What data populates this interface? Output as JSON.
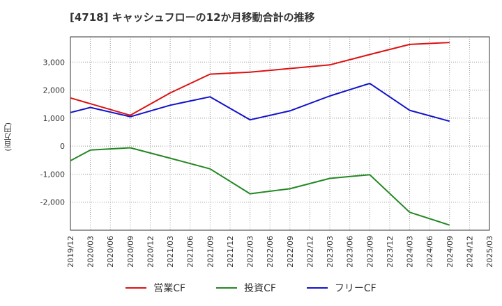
{
  "title": "[4718]  キャッシュフローの12か月移動合計の推移",
  "y_unit_label": "(百万円)",
  "chart_data": {
    "type": "line",
    "x_ticks": [
      "2019/12",
      "2020/03",
      "2020/06",
      "2020/09",
      "2020/12",
      "2021/03",
      "2021/06",
      "2021/09",
      "2021/12",
      "2022/03",
      "2022/06",
      "2022/09",
      "2022/12",
      "2023/03",
      "2023/06",
      "2023/09",
      "2023/12",
      "2024/03",
      "2024/06",
      "2024/09",
      "2024/12",
      "2025/03"
    ],
    "y_ticks": [
      -2000,
      -1000,
      0,
      1000,
      2000,
      3000
    ],
    "y_tick_labels": [
      "-2,000",
      "-1,000",
      "0",
      "1,000",
      "2,000",
      "3,000"
    ],
    "ylim": [
      -3000,
      3900
    ],
    "grid": true,
    "legend_position": "bottom",
    "series": [
      {
        "name": "営業CF",
        "color": "#dd1111",
        "x": [
          "2019/12",
          "2020/09",
          "2021/03",
          "2021/09",
          "2022/03",
          "2022/09",
          "2023/03",
          "2023/09",
          "2024/03",
          "2024/09"
        ],
        "values": [
          1720,
          1100,
          1900,
          2570,
          2640,
          2770,
          2900,
          3270,
          3630,
          3700
        ]
      },
      {
        "name": "投資CF",
        "color": "#228822",
        "x": [
          "2019/12",
          "2020/03",
          "2020/09",
          "2021/03",
          "2021/09",
          "2022/03",
          "2022/09",
          "2023/03",
          "2023/09",
          "2024/03",
          "2024/09"
        ],
        "values": [
          -520,
          -140,
          -60,
          -430,
          -810,
          -1700,
          -1520,
          -1150,
          -1020,
          -2360,
          -2820
        ]
      },
      {
        "name": "フリーCF",
        "color": "#1111cc",
        "x": [
          "2019/12",
          "2020/03",
          "2020/09",
          "2021/03",
          "2021/09",
          "2022/03",
          "2022/09",
          "2023/03",
          "2023/09",
          "2024/03",
          "2024/09"
        ],
        "values": [
          1200,
          1380,
          1050,
          1460,
          1760,
          940,
          1260,
          1790,
          2240,
          1280,
          890
        ]
      }
    ]
  }
}
